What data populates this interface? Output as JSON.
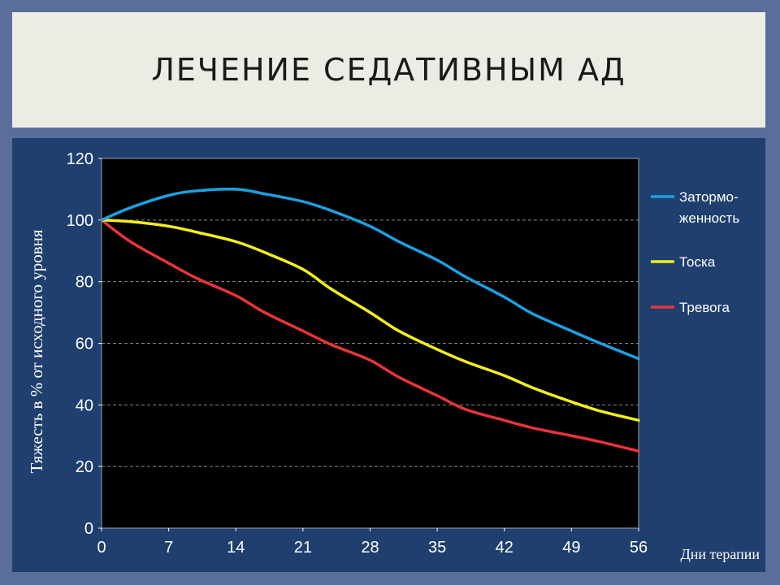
{
  "slide": {
    "title": "ЛЕЧЕНИЕ СЕДАТИВНЫМ АД"
  },
  "chart_data": {
    "type": "line",
    "ylabel": "Тяжесть в % от исходного уровня",
    "xlabel": "Дни терапии",
    "xlim": [
      0,
      56
    ],
    "ylim": [
      0,
      120
    ],
    "x_ticks": [
      0,
      7,
      14,
      21,
      28,
      35,
      42,
      49,
      56
    ],
    "y_ticks": [
      0,
      20,
      40,
      60,
      80,
      100,
      120
    ],
    "grid": "horizontal dashed",
    "legend_position": "right",
    "series": [
      {
        "name": "Затормо-\nженность",
        "legend_lines": [
          "Затормо-",
          "женность"
        ],
        "color": "#1ba1e2",
        "x": [
          0,
          3,
          7,
          10,
          14,
          17,
          21,
          24,
          28,
          31,
          35,
          38,
          42,
          45,
          49,
          52,
          56
        ],
        "y": [
          100,
          104,
          108,
          109.5,
          110,
          108.5,
          106,
          103,
          98,
          93,
          87,
          81.5,
          75,
          69.5,
          64,
          60,
          55
        ]
      },
      {
        "name": "Тоска",
        "legend_lines": [
          "Тоска"
        ],
        "color": "#f2ef1c",
        "x": [
          0,
          3,
          7,
          10,
          14,
          17,
          21,
          24,
          28,
          31,
          35,
          38,
          42,
          45,
          49,
          52,
          56
        ],
        "y": [
          100,
          99.5,
          98,
          96,
          93,
          89.5,
          84,
          77.5,
          70,
          64,
          58,
          54,
          49.5,
          45.5,
          41,
          38,
          35
        ]
      },
      {
        "name": "Тревога",
        "legend_lines": [
          "Тревога"
        ],
        "color": "#e8343a",
        "x": [
          0,
          3,
          7,
          10,
          14,
          17,
          21,
          24,
          28,
          31,
          35,
          38,
          42,
          45,
          49,
          52,
          56
        ],
        "y": [
          100,
          93,
          86,
          81,
          75.5,
          70,
          64,
          59.5,
          54.5,
          49,
          43,
          38.5,
          35,
          32.5,
          30,
          28,
          25
        ]
      }
    ]
  }
}
